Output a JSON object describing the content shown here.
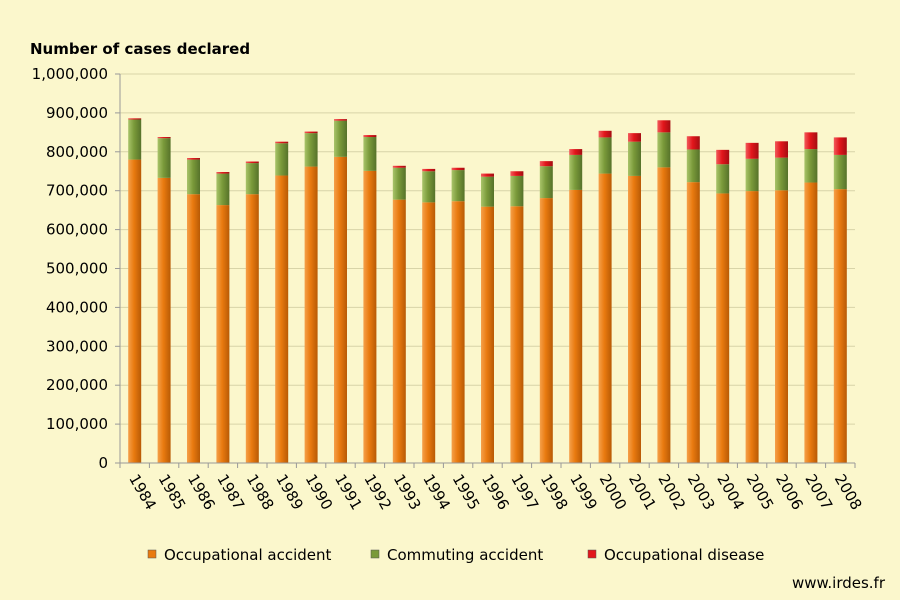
{
  "chart_data": {
    "type": "bar",
    "stacked": true,
    "title": "",
    "ylabel": "Number of cases declared",
    "xlabel": "",
    "ylim": [
      0,
      1000000
    ],
    "yticks": [
      0,
      100000,
      200000,
      300000,
      400000,
      500000,
      600000,
      700000,
      800000,
      900000,
      1000000
    ],
    "ytick_labels": [
      "0",
      "100,000",
      "200,000",
      "300,000",
      "400,000",
      "500,000",
      "600,000",
      "700,000",
      "800,000",
      "900,000",
      "1,000,000"
    ],
    "grid": "horizontal",
    "legend_position": "bottom",
    "categories": [
      "1984",
      "1985",
      "1986",
      "1987",
      "1988",
      "1989",
      "1990",
      "1991",
      "1992",
      "1993",
      "1994",
      "1995",
      "1996",
      "1997",
      "1998",
      "1999",
      "2000",
      "2001",
      "2002",
      "2003",
      "2004",
      "2005",
      "2006",
      "2007",
      "2008"
    ],
    "series": [
      {
        "name": "Occupational accident",
        "color": "#e97a0f",
        "values": [
          780000,
          733000,
          691000,
          663000,
          691000,
          739000,
          762000,
          787000,
          751000,
          677000,
          670000,
          673000,
          659000,
          660000,
          681000,
          702000,
          744000,
          738000,
          760000,
          722000,
          693000,
          699000,
          701000,
          721000,
          704000
        ]
      },
      {
        "name": "Commuting accident",
        "color": "#7a9a3a",
        "values": [
          103000,
          102000,
          89000,
          81000,
          80000,
          83000,
          86000,
          93000,
          87000,
          82000,
          80000,
          80000,
          77000,
          78000,
          82000,
          90000,
          93000,
          88000,
          90000,
          84000,
          75000,
          83000,
          84000,
          86000,
          88000
        ]
      },
      {
        "name": "Occupational disease",
        "color": "#e2161b",
        "values": [
          3000,
          3000,
          4000,
          4000,
          4000,
          4000,
          4000,
          4000,
          5000,
          5000,
          6000,
          6000,
          8000,
          12000,
          13000,
          15000,
          17000,
          22000,
          31000,
          34000,
          37000,
          41000,
          42000,
          43000,
          45000
        ]
      }
    ]
  },
  "source_text": "www.irdes.fr"
}
